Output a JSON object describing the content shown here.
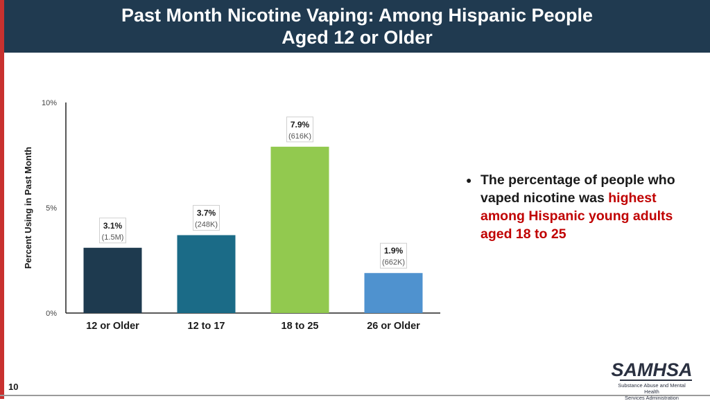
{
  "slide": {
    "title_line1": "Past Month Nicotine Vaping: Among Hispanic People",
    "title_line2": "Aged 12 or Older",
    "page_number": "10",
    "accent_color": "#c8312f",
    "title_bar_color": "#203a50"
  },
  "bullet": {
    "text_prefix": "The percentage of people who vaped nicotine was ",
    "highlight": "highest among Hispanic young adults aged 18 to 25",
    "highlight_color": "#c00000"
  },
  "logo": {
    "wordmark": "SAMHSA",
    "subtitle_line1": "Substance Abuse and Mental Health",
    "subtitle_line2": "Services Administration"
  },
  "chart_data": {
    "type": "bar",
    "categories": [
      "12 or Older",
      "12 to 17",
      "18 to 25",
      "26 or Older"
    ],
    "values": [
      3.1,
      3.7,
      7.9,
      1.9
    ],
    "value_labels": [
      "3.1%",
      "3.7%",
      "7.9%",
      "1.9%"
    ],
    "count_labels": [
      "(1.5M)",
      "(248K)",
      "(616K)",
      "(662K)"
    ],
    "colors": [
      "#1e3a4f",
      "#1b6b87",
      "#92c94f",
      "#4f92cf"
    ],
    "ylabel": "Percent Using in Past Month",
    "ylim": [
      0,
      10
    ],
    "yticks": [
      0,
      5,
      10
    ],
    "ytick_labels": [
      "0%",
      "5%",
      "10%"
    ],
    "grid": false
  }
}
